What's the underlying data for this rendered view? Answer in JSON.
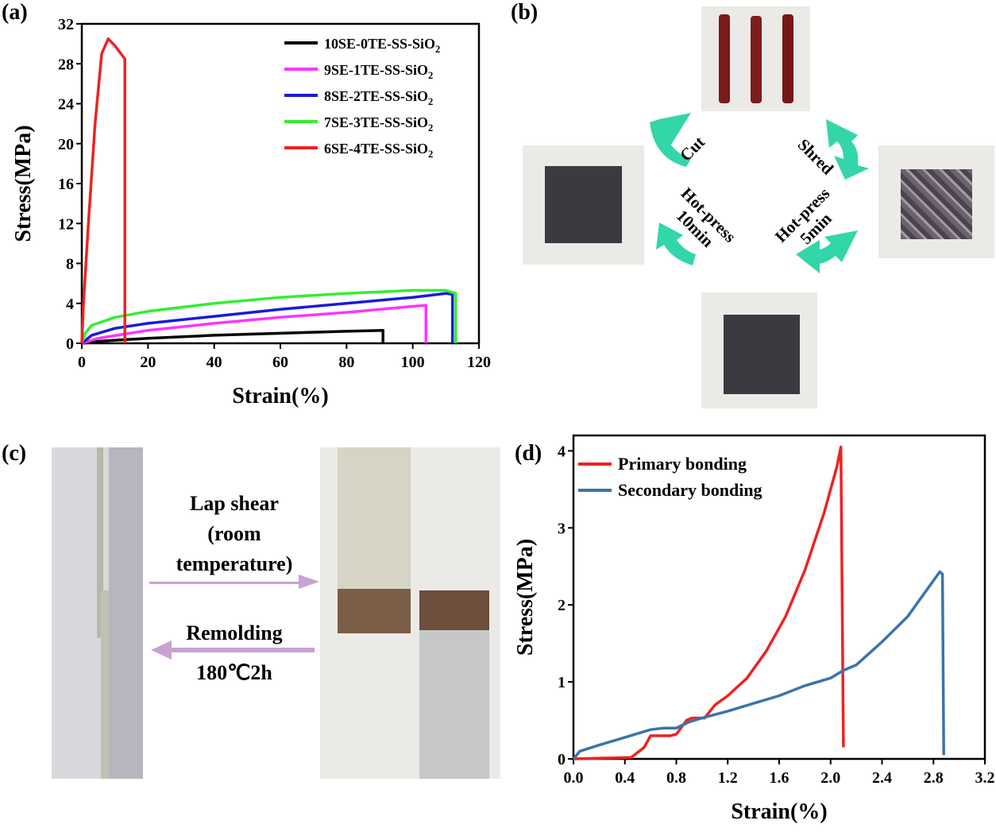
{
  "panels": {
    "a": "(a)",
    "b": "(b)",
    "c": "(c)",
    "d": "(d)"
  },
  "panel_b": {
    "cut": "Cut",
    "shred": "Shred",
    "hotpress10": "Hot-press\n10min",
    "hotpress5": "Hot-press\n5min",
    "arrow_color": "#33d6a8"
  },
  "panel_c": {
    "lap_shear": "Lap shear\n(room\ntemperature)",
    "remolding": "Remolding",
    "condition": "180℃2h",
    "arrow_color": "#c9a2d3"
  },
  "chart_data": [
    {
      "type": "line",
      "xlabel": "Strain(%)",
      "ylabel": "Stress(MPa)",
      "xlim": [
        0,
        120
      ],
      "ylim": [
        0,
        32
      ],
      "xticks": [
        0,
        20,
        40,
        60,
        80,
        100,
        120
      ],
      "yticks": [
        0,
        4,
        8,
        12,
        16,
        20,
        24,
        28,
        32
      ],
      "legend": "top-right",
      "grid": false,
      "series": [
        {
          "name": "10SE-0TE-SS-SiO2",
          "color": "#000000",
          "x": [
            0,
            5,
            20,
            40,
            60,
            80,
            91,
            91
          ],
          "y": [
            0,
            0.2,
            0.5,
            0.8,
            1.0,
            1.2,
            1.3,
            0
          ]
        },
        {
          "name": "9SE-1TE-SS-SiO2",
          "color": "#ff33ff",
          "x": [
            0,
            5,
            20,
            40,
            60,
            80,
            100,
            104,
            104
          ],
          "y": [
            0,
            0.5,
            1.3,
            2.0,
            2.6,
            3.1,
            3.7,
            3.8,
            0
          ]
        },
        {
          "name": "8SE-2TE-SS-SiO2",
          "color": "#1a1adb",
          "x": [
            0,
            3,
            10,
            20,
            40,
            60,
            80,
            100,
            110,
            112,
            112
          ],
          "y": [
            0,
            0.8,
            1.5,
            2.0,
            2.7,
            3.4,
            4.0,
            4.6,
            5.0,
            4.9,
            0
          ]
        },
        {
          "name": "7SE-3TE-SS-SiO2",
          "color": "#33ee33",
          "x": [
            0,
            1,
            3,
            10,
            20,
            40,
            60,
            80,
            100,
            110,
            113,
            113
          ],
          "y": [
            0,
            1.0,
            1.8,
            2.6,
            3.2,
            4.0,
            4.6,
            5.0,
            5.3,
            5.3,
            5.0,
            0
          ]
        },
        {
          "name": "6SE-4TE-SS-SiO2",
          "color": "#ee2222",
          "x": [
            0,
            0.5,
            2,
            4,
            6,
            8,
            10,
            13,
            13
          ],
          "y": [
            0,
            4,
            12,
            22,
            29,
            30.5,
            29.8,
            28.5,
            0
          ]
        }
      ]
    },
    {
      "type": "line",
      "xlabel": "Strain(%)",
      "ylabel": "Stress(MPa)",
      "xlim": [
        0,
        3.2
      ],
      "ylim": [
        0,
        4.2
      ],
      "xticks": [
        "0.0",
        "0.4",
        "0.8",
        "1.2",
        "1.6",
        "2.0",
        "2.4",
        "2.8",
        "3.2"
      ],
      "yticks": [
        0,
        1,
        2,
        3,
        4
      ],
      "legend": "top-left",
      "grid": false,
      "series": [
        {
          "name": "Primary bonding",
          "color": "#ee2222",
          "x": [
            0,
            0.45,
            0.55,
            0.6,
            0.75,
            0.8,
            0.88,
            0.92,
            1.02,
            1.1,
            1.2,
            1.35,
            1.5,
            1.65,
            1.8,
            1.95,
            2.05,
            2.08,
            2.1
          ],
          "y": [
            0,
            0.02,
            0.15,
            0.3,
            0.3,
            0.32,
            0.5,
            0.53,
            0.53,
            0.7,
            0.82,
            1.05,
            1.4,
            1.85,
            2.45,
            3.2,
            3.8,
            4.05,
            0.15
          ]
        },
        {
          "name": "Secondary bonding",
          "color": "#3a74aa",
          "x": [
            0,
            0.05,
            0.2,
            0.4,
            0.6,
            0.7,
            0.8,
            0.9,
            1.0,
            1.2,
            1.4,
            1.6,
            1.8,
            2.0,
            2.1,
            2.2,
            2.4,
            2.6,
            2.75,
            2.85,
            2.87,
            2.88
          ],
          "y": [
            0,
            0.1,
            0.18,
            0.28,
            0.38,
            0.4,
            0.4,
            0.48,
            0.53,
            0.62,
            0.72,
            0.82,
            0.95,
            1.05,
            1.15,
            1.22,
            1.52,
            1.85,
            2.2,
            2.43,
            2.4,
            0.05
          ]
        }
      ]
    }
  ]
}
